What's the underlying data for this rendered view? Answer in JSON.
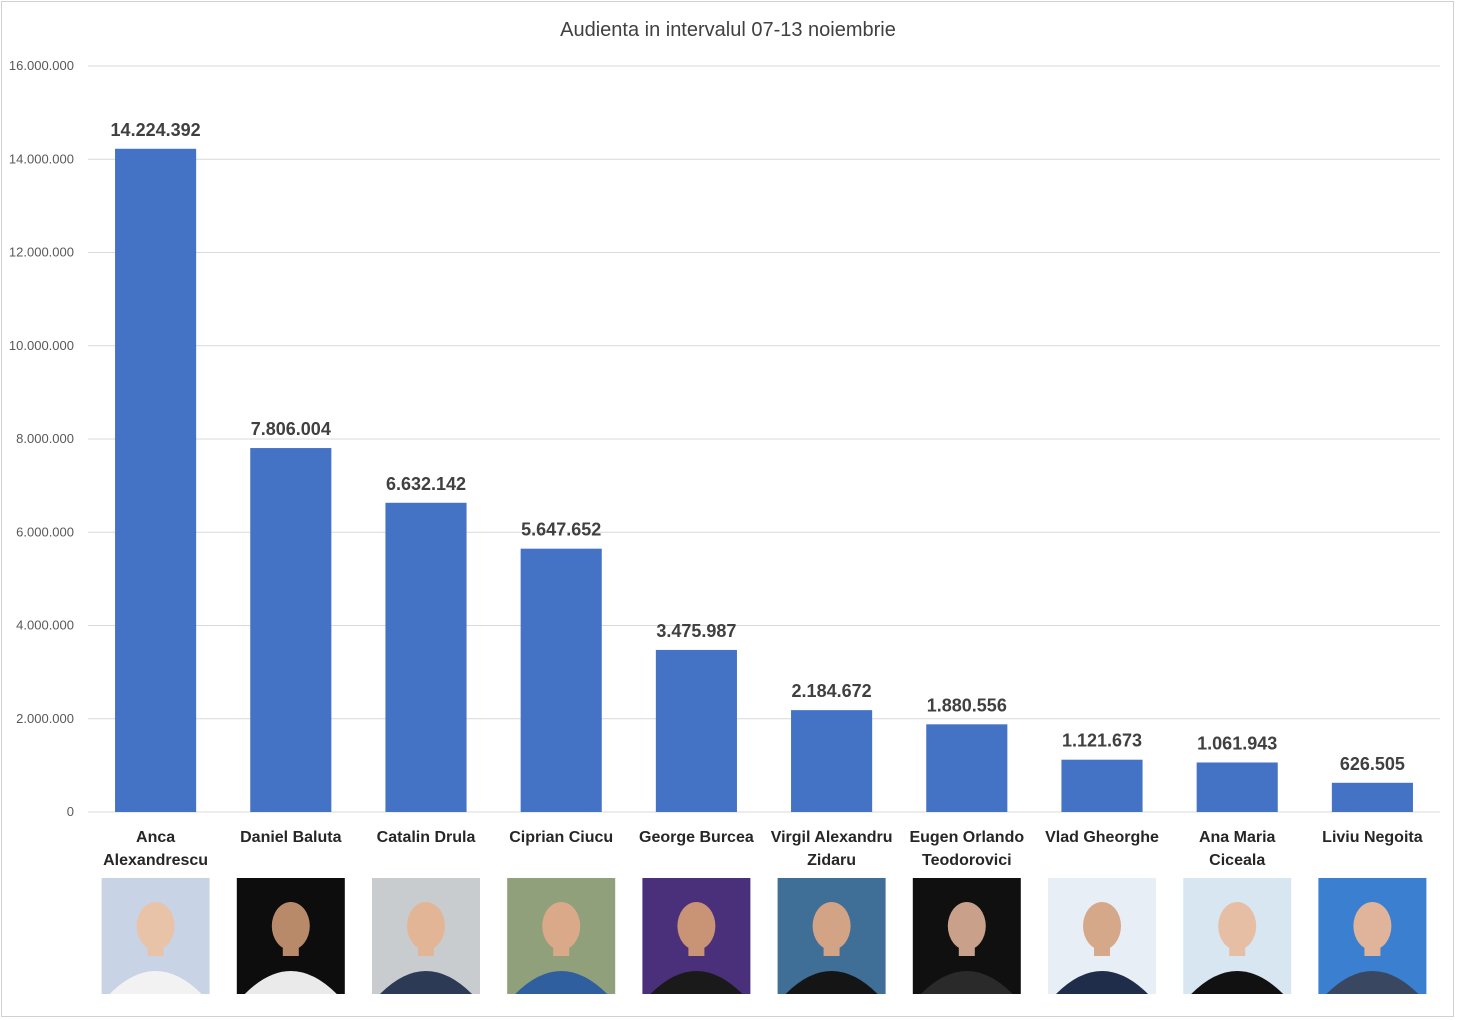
{
  "chart_data": {
    "type": "bar",
    "title": "Audienta in intervalul 07-13 noiembrie",
    "xlabel": "",
    "ylabel": "",
    "ylim": [
      0,
      16000000
    ],
    "yticks": [
      0,
      2000000,
      4000000,
      6000000,
      8000000,
      10000000,
      12000000,
      14000000,
      16000000
    ],
    "ytick_labels": [
      "0",
      "2.000.000",
      "4.000.000",
      "6.000.000",
      "8.000.000",
      "10.000.000",
      "12.000.000",
      "14.000.000",
      "16.000.000"
    ],
    "grid": true,
    "legend": "none",
    "bar_color": "#4472c4",
    "categories": [
      [
        "Anca",
        "Alexandrescu"
      ],
      [
        "Daniel Baluta"
      ],
      [
        "Catalin Drula"
      ],
      [
        "Ciprian Ciucu"
      ],
      [
        "George Burcea"
      ],
      [
        "Virgil Alexandru",
        "Zidaru"
      ],
      [
        "Eugen Orlando",
        "Teodorovici"
      ],
      [
        "Vlad Gheorghe"
      ],
      [
        "Ana Maria",
        "Ciceala"
      ],
      [
        "Liviu Negoita"
      ]
    ],
    "values": [
      14224392,
      7806004,
      6632142,
      5647652,
      3475987,
      2184672,
      1880556,
      1121673,
      1061943,
      626505
    ],
    "data_labels": [
      "14.224.392",
      "7.806.004",
      "6.632.142",
      "5.647.652",
      "3.475.987",
      "2.184.672",
      "1.880.556",
      "1.121.673",
      "1.061.943",
      "626.505"
    ],
    "portraits": [
      {
        "name": "anca-alexandrescu-portrait-icon",
        "bg": "#c9d3e6",
        "skin": "#e8c3a8",
        "shirt": "#f2f2f2"
      },
      {
        "name": "daniel-baluta-portrait-icon",
        "bg": "#0d0d0d",
        "skin": "#b88a6a",
        "shirt": "#eaeaea"
      },
      {
        "name": "catalin-drula-portrait-icon",
        "bg": "#c9cccf",
        "skin": "#e2b597",
        "shirt": "#2d3a55"
      },
      {
        "name": "ciprian-ciucu-portrait-icon",
        "bg": "#8fa07a",
        "skin": "#d9a98a",
        "shirt": "#2f5f9e"
      },
      {
        "name": "george-burcea-portrait-icon",
        "bg": "#4a2f7a",
        "skin": "#c99375",
        "shirt": "#1a1a1a"
      },
      {
        "name": "virgil-zidaru-portrait-icon",
        "bg": "#3f6e96",
        "skin": "#d2a385",
        "shirt": "#151515"
      },
      {
        "name": "eugen-teodorovici-portrait-icon",
        "bg": "#101010",
        "skin": "#c9a08a",
        "shirt": "#2a2a2a"
      },
      {
        "name": "vlad-gheorghe-portrait-icon",
        "bg": "#e8eef6",
        "skin": "#d6a88a",
        "shirt": "#1f2d4a"
      },
      {
        "name": "ana-maria-ciceala-portrait-icon",
        "bg": "#d8e6f2",
        "skin": "#e6bea3",
        "shirt": "#111111"
      },
      {
        "name": "liviu-negoita-portrait-icon",
        "bg": "#3b7fd0",
        "skin": "#e0b49a",
        "shirt": "#3a4760"
      }
    ]
  }
}
